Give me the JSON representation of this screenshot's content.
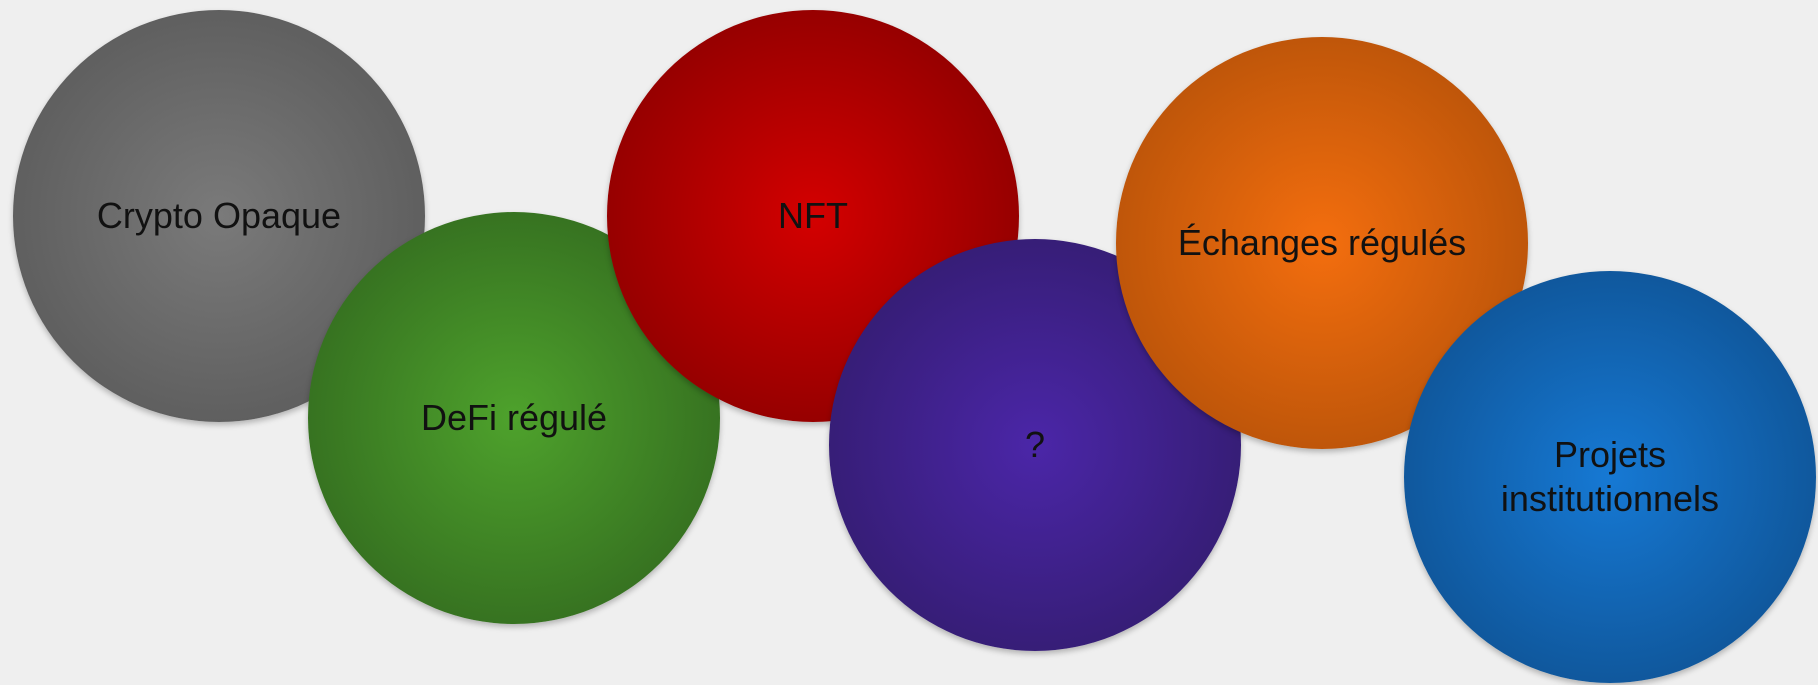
{
  "bubbles": [
    {
      "key": "crypto",
      "label": "Crypto Opaque",
      "color_center": "#7a7a7a",
      "color_edge": "#545454"
    },
    {
      "key": "defi",
      "label": "DeFi régulé",
      "color_center": "#4ea22c",
      "color_edge": "#2d5f1c"
    },
    {
      "key": "nft",
      "label": "NFT",
      "color_center": "#d40000",
      "color_edge": "#7d0000"
    },
    {
      "key": "question",
      "label": "?",
      "color_center": "#4b26a8",
      "color_edge": "#2e1a63"
    },
    {
      "key": "echanges",
      "label": "Échanges régulés",
      "color_center": "#f46e0e",
      "color_edge": "#a94c08"
    },
    {
      "key": "projets",
      "label": "Projets institutionnels",
      "color_center": "#1679d4",
      "color_edge": "#0d4a86"
    }
  ]
}
